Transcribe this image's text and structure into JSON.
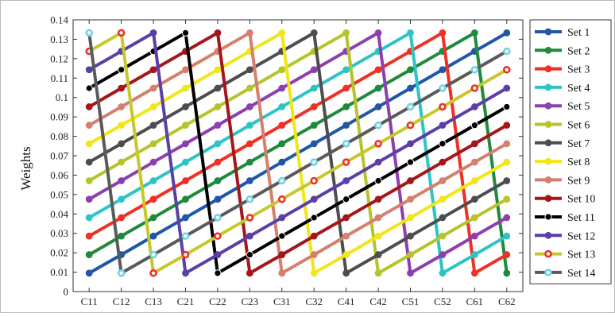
{
  "chart_data": {
    "type": "line",
    "title": "",
    "xlabel": "",
    "ylabel": "Weights",
    "categories": [
      "C11",
      "C12",
      "C13",
      "C21",
      "C22",
      "C23",
      "C31",
      "C32",
      "C41",
      "C42",
      "C51",
      "C52",
      "C61",
      "C62"
    ],
    "ylim": [
      0,
      0.14
    ],
    "yticks": [
      0,
      0.01,
      0.02,
      0.03,
      0.04,
      0.05,
      0.06,
      0.07,
      0.08,
      0.09,
      0.1,
      0.11,
      0.12,
      0.13,
      0.14
    ],
    "ytick_labels": [
      "0",
      "0.01",
      "0.02",
      "0.03",
      "0.04",
      "0.05",
      "0.06",
      "0.07",
      "0.08",
      "0.09",
      "0.1",
      "0.11",
      "0.12",
      "0.13",
      "0.14"
    ],
    "grid": false,
    "legend_position": "right",
    "series": [
      {
        "name": "Set 1",
        "color": "#2156a6",
        "marker": "dot",
        "values": [
          0.0095,
          0.019,
          0.0286,
          0.0381,
          0.0476,
          0.0571,
          0.0667,
          0.0762,
          0.0857,
          0.0952,
          0.1048,
          0.1143,
          0.1238,
          0.1333
        ]
      },
      {
        "name": "Set 2",
        "color": "#1f8a3a",
        "marker": "dot",
        "values": [
          0.019,
          0.0286,
          0.0381,
          0.0476,
          0.0571,
          0.0667,
          0.0762,
          0.0857,
          0.0952,
          0.1048,
          0.1143,
          0.1238,
          0.1333,
          0.0095
        ]
      },
      {
        "name": "Set 3",
        "color": "#ee3124",
        "marker": "dot",
        "values": [
          0.0286,
          0.0381,
          0.0476,
          0.0571,
          0.0667,
          0.0762,
          0.0857,
          0.0952,
          0.1048,
          0.1143,
          0.1238,
          0.1333,
          0.0095,
          0.019
        ]
      },
      {
        "name": "Set 4",
        "color": "#2ec4c6",
        "marker": "dot",
        "values": [
          0.0381,
          0.0476,
          0.0571,
          0.0667,
          0.0762,
          0.0857,
          0.0952,
          0.1048,
          0.1143,
          0.1238,
          0.1333,
          0.0095,
          0.019,
          0.0286
        ]
      },
      {
        "name": "Set 5",
        "color": "#8e3fae",
        "marker": "dot",
        "values": [
          0.0476,
          0.0571,
          0.0667,
          0.0762,
          0.0857,
          0.0952,
          0.1048,
          0.1143,
          0.1238,
          0.1333,
          0.0095,
          0.019,
          0.0286,
          0.0381
        ]
      },
      {
        "name": "Set 6",
        "color": "#b5c42b",
        "marker": "dot",
        "values": [
          0.0571,
          0.0667,
          0.0762,
          0.0857,
          0.0952,
          0.1048,
          0.1143,
          0.1238,
          0.1333,
          0.0095,
          0.019,
          0.0286,
          0.0381,
          0.0476
        ]
      },
      {
        "name": "Set 7",
        "color": "#4d4d4d",
        "marker": "dot",
        "values": [
          0.0667,
          0.0762,
          0.0857,
          0.0952,
          0.1048,
          0.1143,
          0.1238,
          0.1333,
          0.0095,
          0.019,
          0.0286,
          0.0381,
          0.0476,
          0.0571
        ]
      },
      {
        "name": "Set 8",
        "color": "#f2e51a",
        "marker": "dot",
        "values": [
          0.0762,
          0.0857,
          0.0952,
          0.1048,
          0.1143,
          0.1238,
          0.1333,
          0.0095,
          0.019,
          0.0286,
          0.0381,
          0.0476,
          0.0571,
          0.0667
        ]
      },
      {
        "name": "Set 9",
        "color": "#d4806d",
        "marker": "dot",
        "values": [
          0.0857,
          0.0952,
          0.1048,
          0.1143,
          0.1238,
          0.1333,
          0.0095,
          0.019,
          0.0286,
          0.0381,
          0.0476,
          0.0571,
          0.0667,
          0.0762
        ]
      },
      {
        "name": "Set 10",
        "color": "#a4161a",
        "marker": "dot",
        "values": [
          0.0952,
          0.1048,
          0.1143,
          0.1238,
          0.1333,
          0.0095,
          0.019,
          0.0286,
          0.0381,
          0.0476,
          0.0571,
          0.0667,
          0.0762,
          0.0857
        ]
      },
      {
        "name": "Set 11",
        "color": "#000000",
        "marker": "ring",
        "values": [
          0.1048,
          0.1143,
          0.1238,
          0.1333,
          0.0095,
          0.019,
          0.0286,
          0.0381,
          0.0476,
          0.0571,
          0.0667,
          0.0762,
          0.0857,
          0.0952
        ]
      },
      {
        "name": "Set 12",
        "color": "#5b3fa6",
        "marker": "dot",
        "values": [
          0.1143,
          0.1238,
          0.1333,
          0.0095,
          0.019,
          0.0286,
          0.0381,
          0.0476,
          0.0571,
          0.0667,
          0.0762,
          0.0857,
          0.0952,
          0.1048
        ]
      },
      {
        "name": "Set 13",
        "color": "#c7c82a",
        "marker": "ring-red",
        "values": [
          0.1238,
          0.1333,
          0.0095,
          0.019,
          0.0286,
          0.0381,
          0.0476,
          0.0571,
          0.0667,
          0.0762,
          0.0857,
          0.0952,
          0.1048,
          0.1143
        ]
      },
      {
        "name": "Set 14",
        "color": "#5a5a5a",
        "marker": "ring-cyan",
        "values": [
          0.1333,
          0.0095,
          0.019,
          0.0286,
          0.0381,
          0.0476,
          0.0571,
          0.0667,
          0.0762,
          0.0857,
          0.0952,
          0.1048,
          0.1143,
          0.1238
        ]
      }
    ]
  }
}
